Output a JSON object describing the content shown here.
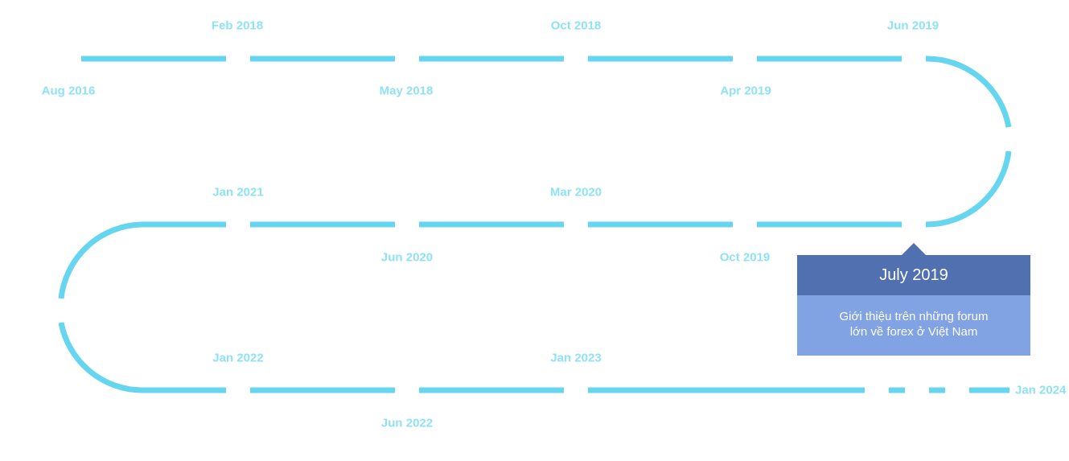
{
  "colors": {
    "track": "#66d6f0",
    "label": "#8fe2f6",
    "tooltip_header": "#5070b0",
    "tooltip_body": "#81a2e3",
    "tooltip_text": "#ffffff"
  },
  "milestones": [
    {
      "label": "Aug 2016"
    },
    {
      "label": "Feb 2018"
    },
    {
      "label": "May 2018"
    },
    {
      "label": "Oct 2018"
    },
    {
      "label": "Apr 2019"
    },
    {
      "label": "Jun 2019"
    },
    {
      "label": "Oct 2019"
    },
    {
      "label": "Mar 2020"
    },
    {
      "label": "Jun 2020"
    },
    {
      "label": "Jan 2021"
    },
    {
      "label": "Jan 2022"
    },
    {
      "label": "Jun 2022"
    },
    {
      "label": "Jan 2023"
    },
    {
      "label": "Jan 2024"
    }
  ],
  "tooltip": {
    "title": "July 2019",
    "lines": [
      "Giới thiệu trên những forum",
      "lớn về forex ở Việt Nam"
    ]
  }
}
